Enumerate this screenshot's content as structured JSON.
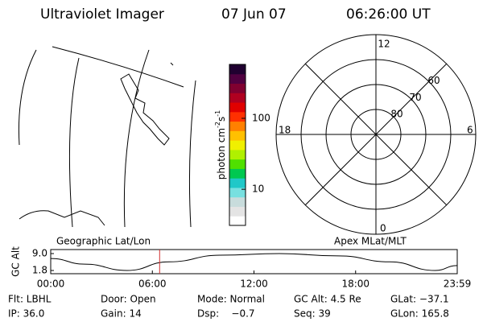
{
  "header": {
    "title": "Ultraviolet Imager",
    "date": "07 Jun 07",
    "time": "06:26:00 UT"
  },
  "colorbar": {
    "label": {
      "base": "photon cm",
      "exp1": "-2",
      "mid": "s",
      "exp2": "-1"
    },
    "range": [
      3.1,
      575
    ],
    "log": true,
    "ticks": [
      10,
      100
    ],
    "colors": [
      "#ffffff",
      "#e4e4e4",
      "#c8dcdc",
      "#78e0e0",
      "#20c8c8",
      "#00c850",
      "#50e000",
      "#b0f000",
      "#f0f000",
      "#ffc000",
      "#ff8000",
      "#ff3000",
      "#e00000",
      "#b00020",
      "#800030",
      "#500040",
      "#200030"
    ]
  },
  "polar": {
    "mlt_labels": {
      "top": "12",
      "right": "6",
      "bottom": "0",
      "left": "18"
    },
    "lat_rings": [
      60,
      70,
      80
    ]
  },
  "panel_labels": {
    "left": "Geographic Lat/Lon",
    "right": "Apex MLat/MLT"
  },
  "altitude_plot": {
    "ylabel": "GC Alt",
    "x": [
      0,
      2,
      4.5,
      7,
      10,
      13.5,
      17,
      20,
      22.7,
      24
    ],
    "values": [
      6.9,
      4.5,
      1.8,
      5.5,
      8.3,
      9.0,
      8.0,
      5.5,
      1.8,
      3.9
    ],
    "ylim": [
      1.8,
      9.0
    ],
    "yticks": [
      {
        "value": 9.0,
        "label": "9.0"
      },
      {
        "value": 1.8,
        "label": "1.8"
      }
    ],
    "xlim": [
      0,
      24
    ],
    "xticks": [
      {
        "value": 0,
        "label": "00:00"
      },
      {
        "value": 6,
        "label": "06:00"
      },
      {
        "value": 12,
        "label": "12:00"
      },
      {
        "value": 18,
        "label": "18:00"
      },
      {
        "value": 24,
        "label": "23:59"
      }
    ],
    "current": 6.43,
    "current_color": "#d03030"
  },
  "footer": {
    "rows": [
      [
        "Flt: LBHL",
        "Door: Open",
        "Mode: Normal",
        "GC Alt: 4.5 Re",
        "GLat: −37.1"
      ],
      [
        "IP: 36.0",
        "Gain: 14",
        "Dsp:    −0.7",
        "Seq: 39",
        "GLon: 165.8"
      ]
    ]
  }
}
